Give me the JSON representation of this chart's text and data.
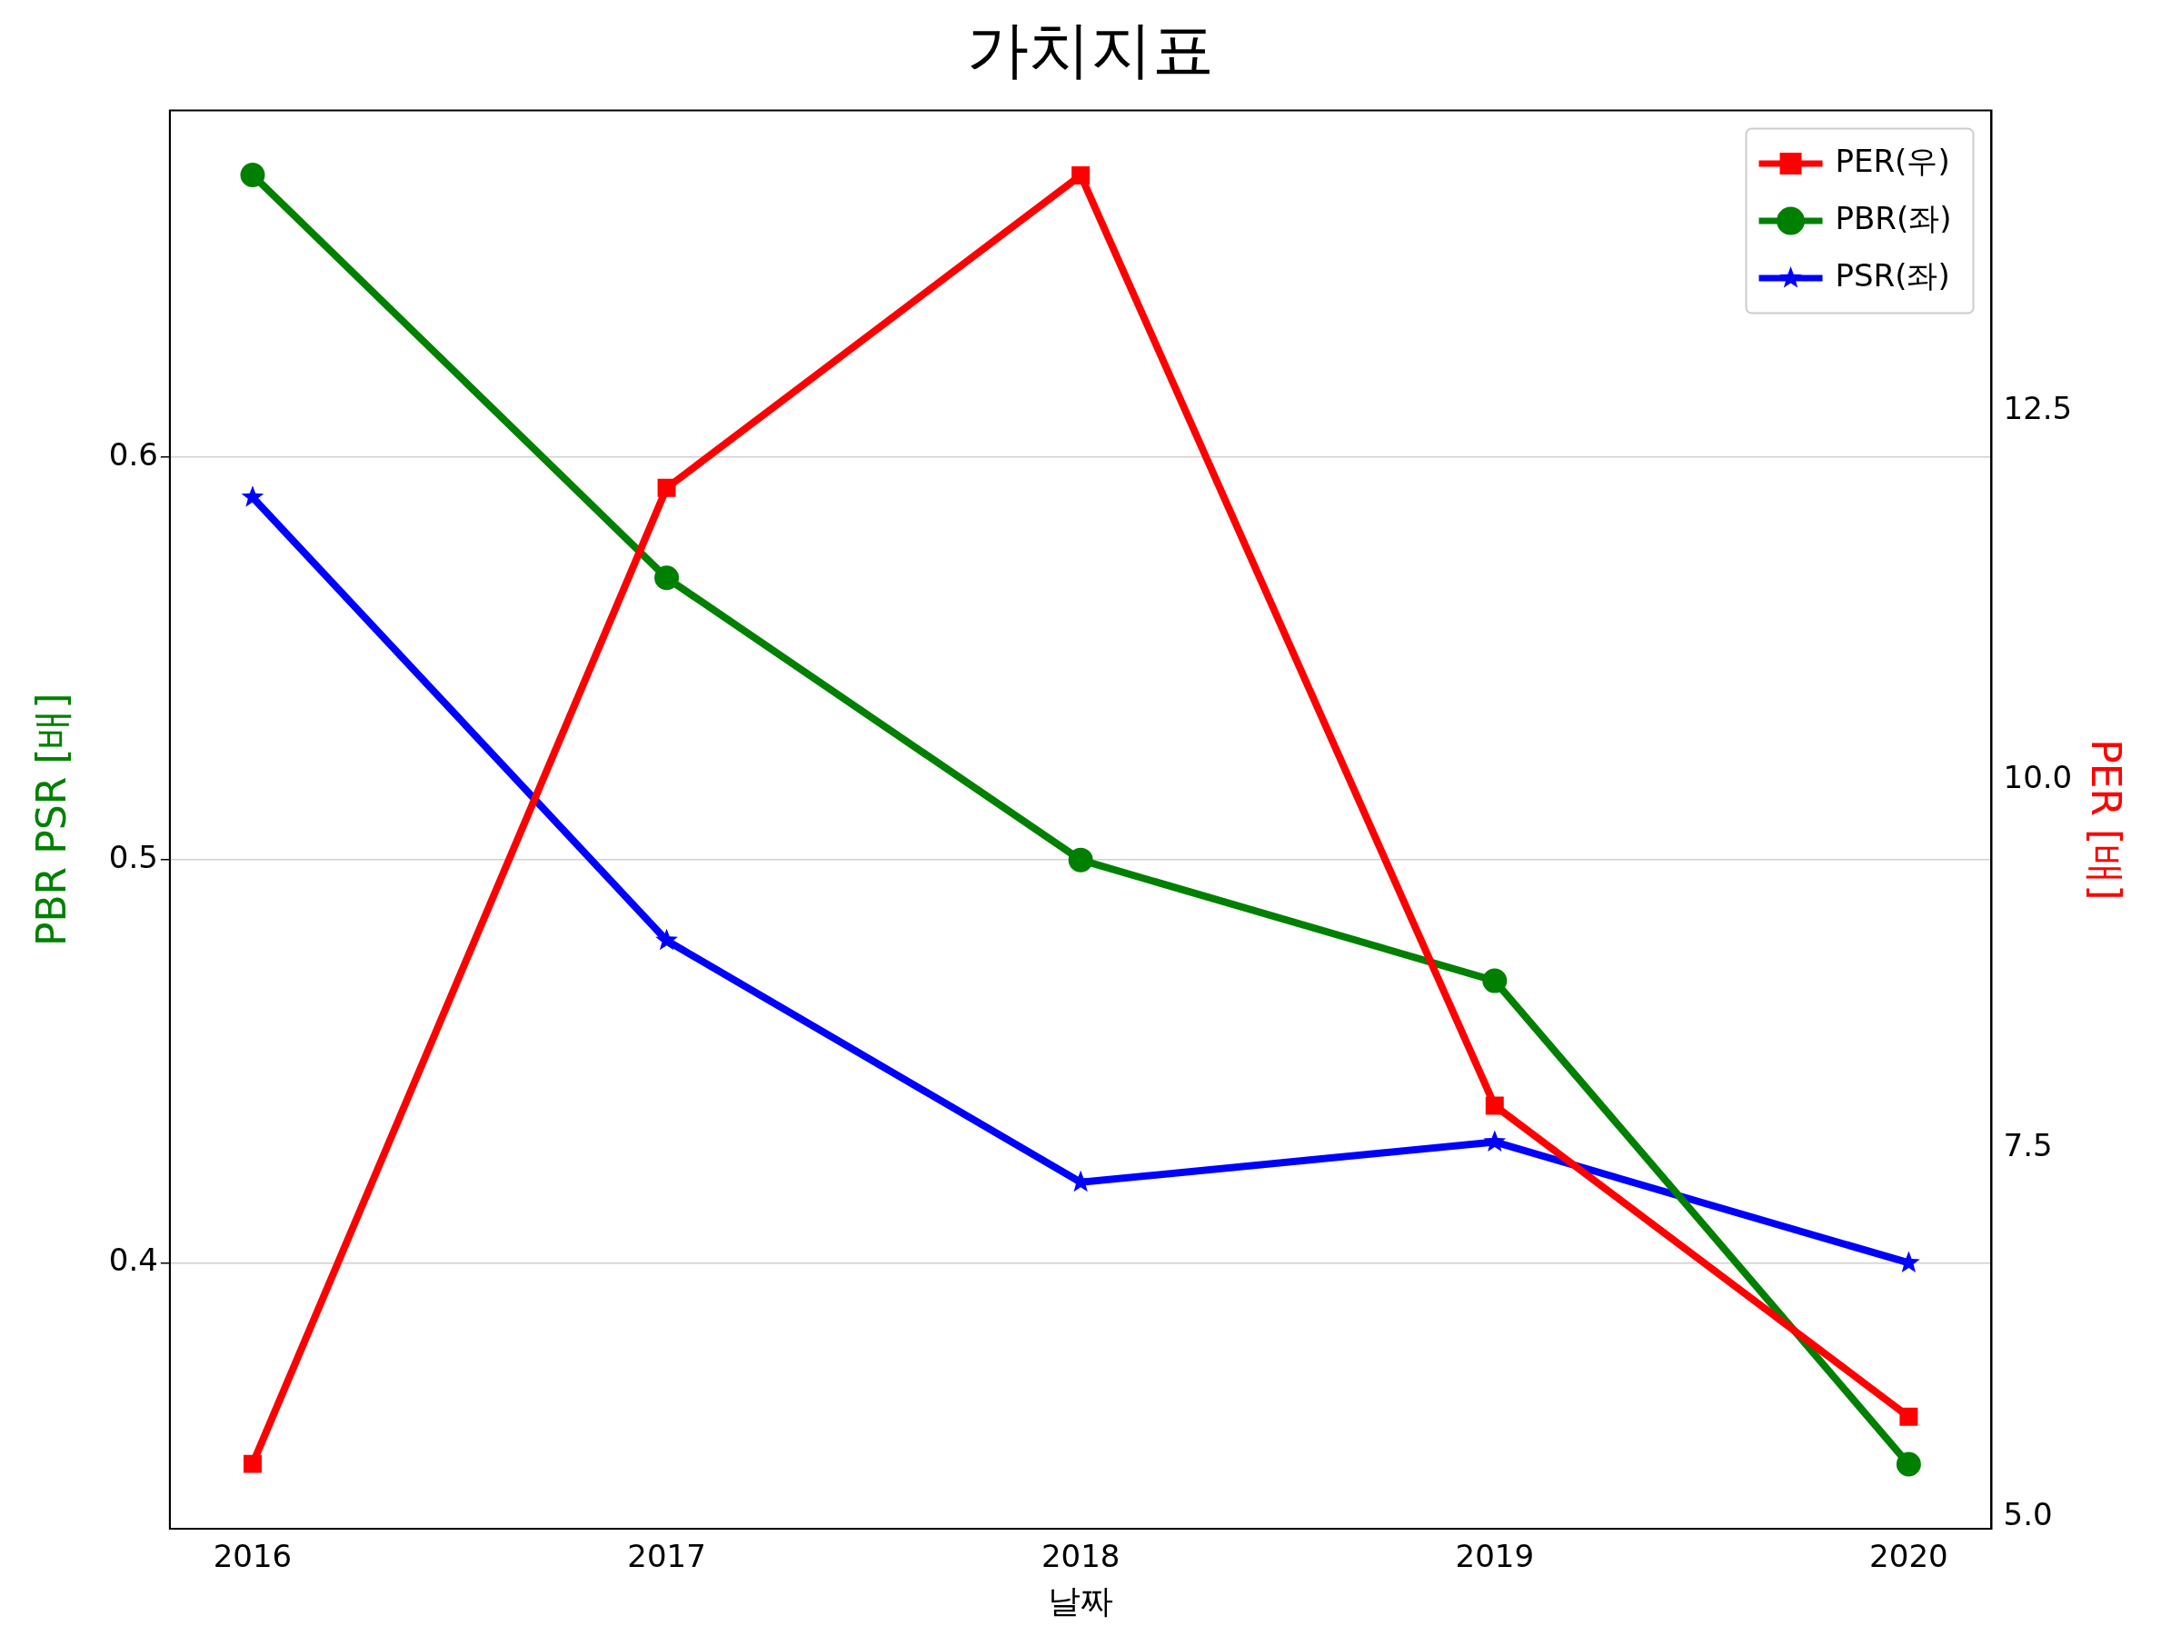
{
  "chart_data": {
    "type": "line",
    "title": "가치지표",
    "xlabel": "날짜",
    "ylabel": "PBR PSR [배]",
    "y2label": "PER [배]",
    "x": [
      2016,
      2017,
      2018,
      2019,
      2020
    ],
    "xlim": [
      2015.8,
      2020.2
    ],
    "xticks": [
      2016,
      2017,
      2018,
      2019,
      2020
    ],
    "ylim": [
      0.334,
      0.686
    ],
    "yticks": [
      0.4,
      0.5,
      0.6
    ],
    "y2lim": [
      4.92,
      14.54
    ],
    "y2ticks": [
      {
        "value": 5,
        "label": "5.0"
      },
      7.5,
      {
        "value": 10,
        "label": "10.0"
      },
      12.5
    ],
    "grid": "y",
    "legend": "top right",
    "line_style": "solid",
    "series": [
      {
        "name": "PER(우)",
        "color": "#ff0000",
        "axis": "y2",
        "marker": "square",
        "values": [
          5.36,
          11.98,
          14.1,
          7.79,
          5.68
        ]
      },
      {
        "name": "PBR(좌)",
        "color": "#008000",
        "axis": "y",
        "marker": "circle",
        "values": [
          0.67,
          0.57,
          0.5,
          0.47,
          0.35
        ]
      },
      {
        "name": "PSR(좌)",
        "color": "#0000ff",
        "axis": "y",
        "marker": "star",
        "values": [
          0.59,
          0.48,
          0.42,
          0.43,
          0.4
        ]
      }
    ]
  }
}
